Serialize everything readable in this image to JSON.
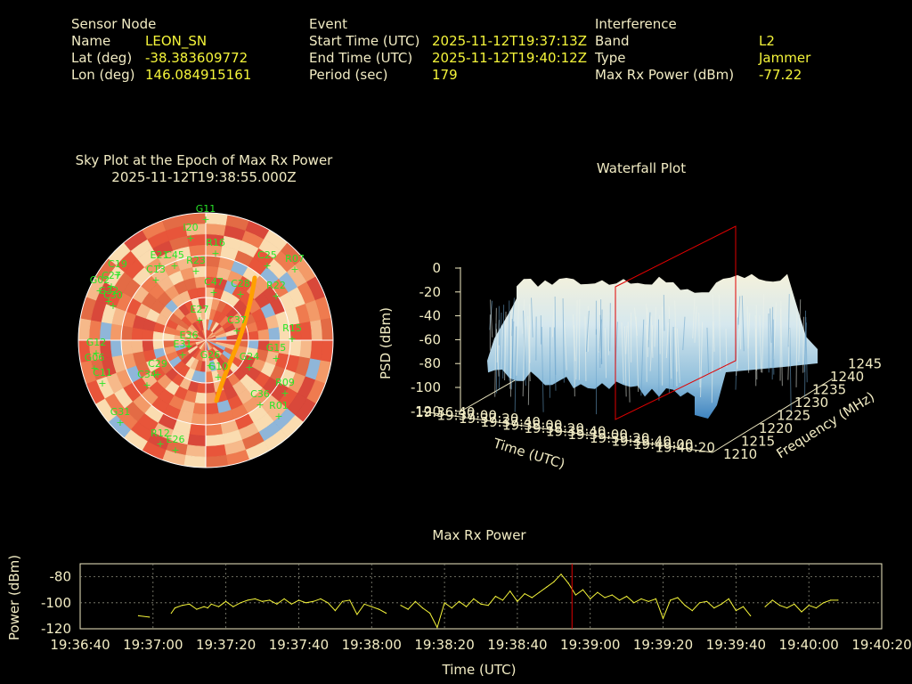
{
  "header": {
    "sensor": {
      "heading": "Sensor Node",
      "name_label": "Name",
      "name": "LEON_SN",
      "lat_label": "Lat (deg)",
      "lat": "-38.383609772",
      "lon_label": "Lon (deg)",
      "lon": "146.084915161"
    },
    "event": {
      "heading": "Event",
      "start_label": "Start Time (UTC)",
      "start": "2025-11-12T19:37:13Z",
      "end_label": "End Time (UTC)",
      "end": "2025-11-12T19:40:12Z",
      "period_label": "Period (sec)",
      "period": "179"
    },
    "interference": {
      "heading": "Interference",
      "band_label": "Band",
      "band": "L2",
      "type_label": "Type",
      "type": "Jammer",
      "power_label": "Max Rx Power (dBm)",
      "power": "-77.22"
    }
  },
  "skyplot": {
    "title_line1": "Sky Plot at the Epoch of Max Rx Power",
    "title_line2": "2025-11-12T19:38:55.000Z",
    "satellites": [
      "G11",
      "I20",
      "R16",
      "C45",
      "C19",
      "R07",
      "G02",
      "E21",
      "C27",
      "R23",
      "C25",
      "C30",
      "G32",
      "C13",
      "C28",
      "C47",
      "G12",
      "E27",
      "R22",
      "C37",
      "E31",
      "G26",
      "G06",
      "C29",
      "G10",
      "G24",
      "C11",
      "R15",
      "G15",
      "C34",
      "R01",
      "C36",
      "R09",
      "G31",
      "R12",
      "E36",
      "E26"
    ]
  },
  "waterfall": {
    "title": "Waterfall Plot",
    "zlabel": "PSD (dBm)",
    "xlabel": "Time (UTC)",
    "ylabel": "Frequency (MHz)",
    "zticks": [
      "0",
      "-20",
      "-40",
      "-60",
      "-80",
      "-100",
      "-120"
    ],
    "yticks": [
      "1210",
      "1215",
      "1220",
      "1225",
      "1230",
      "1235",
      "1240",
      "1245"
    ],
    "xticks": [
      "19:36:40",
      "19:37:00",
      "19:37:20",
      "19:37:40",
      "19:38:00",
      "19:38:20",
      "19:38:40",
      "19:39:00",
      "19:39:20",
      "19:39:40",
      "19:40:00",
      "19:40:20"
    ]
  },
  "chart_data": {
    "type": "line",
    "title": "Max Rx Power",
    "xlabel": "Time (UTC)",
    "ylabel": "Power (dBm)",
    "xticks": [
      "19:36:40",
      "19:37:00",
      "19:37:20",
      "19:37:40",
      "19:38:00",
      "19:38:20",
      "19:38:40",
      "19:39:00",
      "19:39:20",
      "19:39:40",
      "19:40:00",
      "19:40:20"
    ],
    "yticks": [
      "-80",
      "-100",
      "-120"
    ],
    "xlim_sec": [
      0,
      220
    ],
    "ylim": [
      -120,
      -70
    ],
    "grid": true,
    "marker_time": "19:38:55",
    "x_sec": [
      16,
      19,
      24,
      25,
      26,
      28,
      30,
      32,
      34,
      35,
      36,
      38,
      40,
      42,
      44,
      46,
      48,
      50,
      52,
      54,
      56,
      58,
      60,
      62,
      64,
      66,
      68,
      70,
      72,
      74,
      76,
      78,
      80,
      82,
      84,
      86,
      88,
      90,
      92,
      94,
      96,
      98,
      100,
      102,
      104,
      106,
      108,
      110,
      112,
      114,
      116,
      118,
      120,
      122,
      124,
      126,
      128,
      130,
      132,
      134,
      136,
      138,
      140,
      142,
      144,
      146,
      148,
      150,
      152,
      154,
      156,
      158,
      160,
      162,
      164,
      166,
      168,
      170,
      172,
      174,
      176,
      178,
      180,
      182,
      184,
      186,
      188,
      190,
      192,
      194,
      196,
      198,
      200,
      202,
      204,
      206,
      208
    ],
    "values": [
      -110,
      -111,
      null,
      -108,
      -104,
      -102,
      -101,
      -105,
      -103,
      -104,
      -101,
      -103,
      -99,
      -103,
      -100,
      -98,
      -97,
      -99,
      -98,
      -101,
      -97,
      -101,
      -98,
      -100,
      -99,
      -97,
      -100,
      -106,
      -99,
      -98,
      -109,
      -101,
      -103,
      -105,
      -108,
      null,
      -102,
      -105,
      -99,
      -104,
      -108,
      -119,
      -100,
      -104,
      -99,
      -103,
      -97,
      -101,
      -102,
      -95,
      -98,
      -91,
      -99,
      -93,
      -96,
      -92,
      -88,
      -84,
      -78,
      -85,
      -94,
      -90,
      -97,
      -92,
      -96,
      -94,
      -98,
      -95,
      -100,
      -97,
      -99,
      -97,
      -112,
      -98,
      -96,
      -102,
      -106,
      -100,
      -99,
      -104,
      -101,
      -97,
      -106,
      -103,
      -110,
      null,
      -103,
      -98,
      -102,
      -104,
      -101,
      -107,
      -102,
      -104,
      -100,
      -98,
      -98
    ],
    "colors": {
      "line": "#f5f53a",
      "marker": "#e00000",
      "frame": "#f2ecc4",
      "grid": "#8a8a7a"
    }
  }
}
